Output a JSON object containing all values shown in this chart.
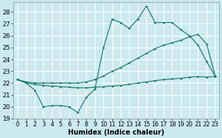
{
  "xlabel": "Humidex (Indice chaleur)",
  "bg_color": "#cce9f0",
  "grid_color": "#ffffff",
  "line_color": "#1a7a6e",
  "ylim": [
    19,
    28.8
  ],
  "xlim": [
    -0.5,
    23.5
  ],
  "yticks": [
    19,
    20,
    21,
    22,
    23,
    24,
    25,
    26,
    27,
    28
  ],
  "xticks": [
    0,
    1,
    2,
    3,
    4,
    5,
    6,
    7,
    8,
    9,
    10,
    11,
    12,
    13,
    14,
    15,
    16,
    17,
    18,
    19,
    20,
    21,
    22,
    23
  ],
  "y_top": [
    22.3,
    22.0,
    21.4,
    20.0,
    20.1,
    20.1,
    20.0,
    19.5,
    20.8,
    21.5,
    25.0,
    27.4,
    27.1,
    26.6,
    27.4,
    28.5,
    27.1,
    27.1,
    27.1,
    26.5,
    26.0,
    25.2,
    23.8,
    22.6
  ],
  "y_mid": [
    22.3,
    22.1,
    22.0,
    22.0,
    22.0,
    22.0,
    22.0,
    22.0,
    22.1,
    22.3,
    22.6,
    23.0,
    23.3,
    23.7,
    24.1,
    24.5,
    24.9,
    25.2,
    25.4,
    25.6,
    25.9,
    26.1,
    25.3,
    22.6
  ],
  "y_bot": [
    22.3,
    22.0,
    21.9,
    21.8,
    21.75,
    21.7,
    21.65,
    21.6,
    21.6,
    21.65,
    21.7,
    21.75,
    21.8,
    21.9,
    22.0,
    22.1,
    22.2,
    22.3,
    22.35,
    22.4,
    22.5,
    22.55,
    22.5,
    22.55
  ],
  "font_size": 6.5
}
